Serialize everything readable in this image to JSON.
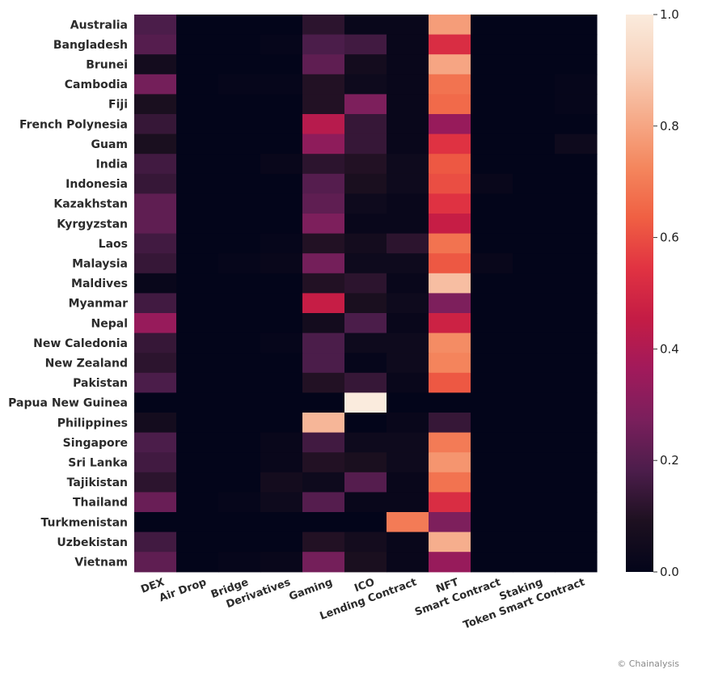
{
  "chart_data": {
    "type": "heatmap",
    "rows": [
      "Australia",
      "Bangladesh",
      "Brunei",
      "Cambodia",
      "Fiji",
      "French Polynesia",
      "Guam",
      "India",
      "Indonesia",
      "Kazakhstan",
      "Kyrgyzstan",
      "Laos",
      "Malaysia",
      "Maldives",
      "Myanmar",
      "Nepal",
      "New Caledonia",
      "New Zealand",
      "Pakistan",
      "Papua New Guinea",
      "Philippines",
      "Singapore",
      "Sri Lanka",
      "Tajikistan",
      "Thailand",
      "Turkmenistan",
      "Uzbekistan",
      "Vietnam"
    ],
    "columns": [
      "DEX",
      "Air Drop",
      "Bridge",
      "Derivatives",
      "Gaming",
      "ICO",
      "Lending Contract",
      "NFT",
      "Smart Contract",
      "Staking",
      "Token Smart Contract"
    ],
    "values": [
      [
        0.18,
        0.0,
        0.0,
        0.0,
        0.12,
        0.02,
        0.02,
        0.78,
        0.0,
        0.0,
        0.0
      ],
      [
        0.2,
        0.0,
        0.0,
        0.01,
        0.18,
        0.16,
        0.02,
        0.52,
        0.0,
        0.0,
        0.0
      ],
      [
        0.06,
        0.0,
        0.0,
        0.0,
        0.22,
        0.06,
        0.02,
        0.8,
        0.0,
        0.0,
        0.0
      ],
      [
        0.26,
        0.0,
        0.01,
        0.01,
        0.1,
        0.04,
        0.02,
        0.68,
        0.0,
        0.0,
        0.01
      ],
      [
        0.08,
        0.0,
        0.0,
        0.0,
        0.1,
        0.28,
        0.02,
        0.66,
        0.0,
        0.0,
        0.01
      ],
      [
        0.14,
        0.0,
        0.0,
        0.0,
        0.42,
        0.14,
        0.02,
        0.34,
        0.0,
        0.0,
        0.0
      ],
      [
        0.08,
        0.0,
        0.0,
        0.0,
        0.32,
        0.14,
        0.02,
        0.54,
        0.0,
        0.0,
        0.04
      ],
      [
        0.16,
        0.0,
        0.0,
        0.02,
        0.12,
        0.1,
        0.04,
        0.62,
        0.0,
        0.0,
        0.0
      ],
      [
        0.14,
        0.0,
        0.0,
        0.0,
        0.2,
        0.08,
        0.04,
        0.6,
        0.02,
        0.0,
        0.0
      ],
      [
        0.22,
        0.0,
        0.0,
        0.0,
        0.22,
        0.04,
        0.02,
        0.54,
        0.0,
        0.0,
        0.0
      ],
      [
        0.22,
        0.0,
        0.0,
        0.0,
        0.28,
        0.02,
        0.02,
        0.46,
        0.0,
        0.0,
        0.0
      ],
      [
        0.16,
        0.0,
        0.0,
        0.01,
        0.1,
        0.06,
        0.12,
        0.68,
        0.0,
        0.0,
        0.0
      ],
      [
        0.14,
        0.0,
        0.01,
        0.02,
        0.26,
        0.04,
        0.04,
        0.62,
        0.02,
        0.0,
        0.0
      ],
      [
        0.02,
        0.0,
        0.0,
        0.0,
        0.1,
        0.12,
        0.02,
        0.86,
        0.0,
        0.0,
        0.0
      ],
      [
        0.16,
        0.0,
        0.0,
        0.0,
        0.46,
        0.08,
        0.04,
        0.28,
        0.0,
        0.0,
        0.0
      ],
      [
        0.34,
        0.0,
        0.0,
        0.0,
        0.06,
        0.18,
        0.02,
        0.48,
        0.0,
        0.0,
        0.0
      ],
      [
        0.14,
        0.0,
        0.0,
        0.01,
        0.18,
        0.04,
        0.04,
        0.74,
        0.0,
        0.0,
        0.0
      ],
      [
        0.12,
        0.0,
        0.0,
        0.0,
        0.18,
        0.01,
        0.04,
        0.72,
        0.0,
        0.0,
        0.0
      ],
      [
        0.18,
        0.0,
        0.0,
        0.0,
        0.1,
        0.14,
        0.02,
        0.62,
        0.0,
        0.0,
        0.0
      ],
      [
        0.0,
        0.0,
        0.0,
        0.0,
        0.0,
        1.0,
        0.0,
        0.0,
        0.0,
        0.0,
        0.0
      ],
      [
        0.06,
        0.0,
        0.0,
        0.0,
        0.84,
        0.0,
        0.02,
        0.14,
        0.0,
        0.0,
        0.0
      ],
      [
        0.18,
        0.0,
        0.0,
        0.02,
        0.16,
        0.04,
        0.04,
        0.7,
        0.0,
        0.0,
        0.0
      ],
      [
        0.16,
        0.0,
        0.0,
        0.02,
        0.1,
        0.08,
        0.04,
        0.76,
        0.0,
        0.0,
        0.0
      ],
      [
        0.12,
        0.0,
        0.0,
        0.06,
        0.04,
        0.2,
        0.02,
        0.68,
        0.0,
        0.0,
        0.0
      ],
      [
        0.24,
        0.0,
        0.01,
        0.04,
        0.2,
        0.02,
        0.02,
        0.52,
        0.0,
        0.0,
        0.0
      ],
      [
        0.0,
        0.0,
        0.0,
        0.0,
        0.0,
        0.0,
        0.7,
        0.28,
        0.0,
        0.0,
        0.0
      ],
      [
        0.16,
        0.0,
        0.0,
        0.0,
        0.1,
        0.06,
        0.02,
        0.82,
        0.0,
        0.0,
        0.0
      ],
      [
        0.22,
        0.0,
        0.01,
        0.02,
        0.26,
        0.08,
        0.02,
        0.34,
        0.0,
        0.0,
        0.0
      ]
    ],
    "colorbar": {
      "min": 0.0,
      "max": 1.0,
      "ticks": [
        0.0,
        0.2,
        0.4,
        0.6,
        0.8,
        1.0
      ],
      "tick_labels": [
        "0.0",
        "0.2",
        "0.4",
        "0.6",
        "0.8",
        "1.0"
      ],
      "colormap": "rocket"
    },
    "colormap_stops": [
      "#03051a",
      "#1d1020",
      "#4c1d4b",
      "#7a1f5c",
      "#a11a5b",
      "#c41c45",
      "#e13342",
      "#f06043",
      "#f4875e",
      "#f6ad8c",
      "#f8d2bc",
      "#faebdd"
    ],
    "title": "",
    "xlabel": "",
    "ylabel": ""
  },
  "credit": "© Chainalysis"
}
